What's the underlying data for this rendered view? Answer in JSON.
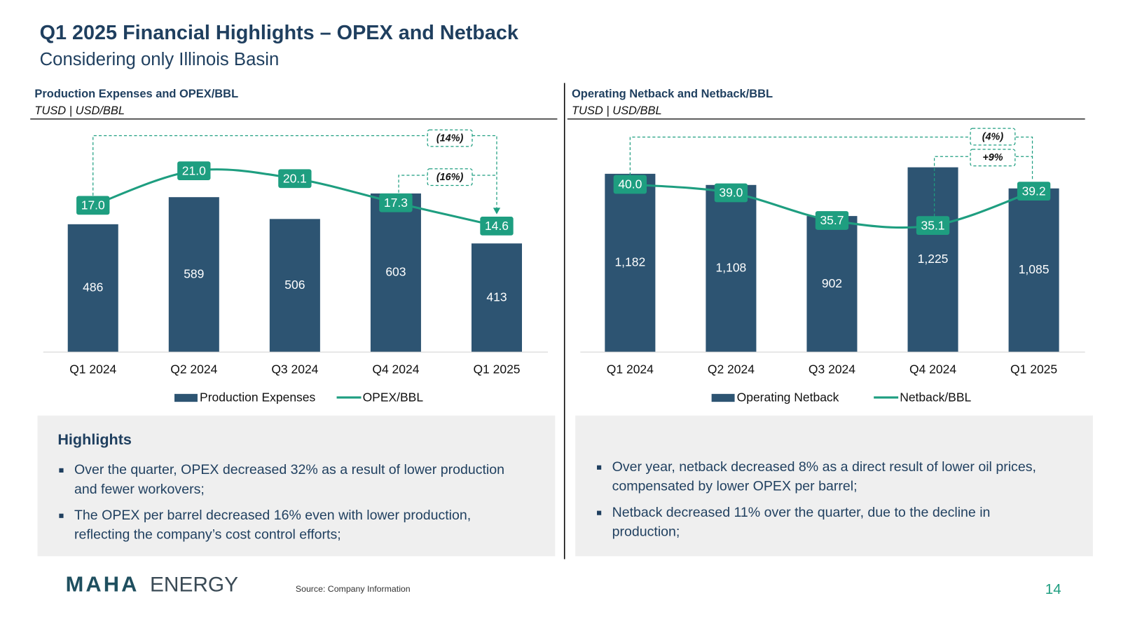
{
  "header": {
    "title": "Q1 2025 Financial Highlights – OPEX and Netback",
    "subtitle": "Considering only Illinois Basin"
  },
  "chart_data": [
    {
      "type": "combo",
      "title": "Production Expenses and OPEX/BBL",
      "subtitle": "TUSD | USD/BBL",
      "categories": [
        "Q1 2024",
        "Q2 2024",
        "Q3 2024",
        "Q4 2024",
        "Q1 2025"
      ],
      "series": [
        {
          "name": "Production Expenses",
          "type": "bar",
          "color": "#2d5472",
          "values": [
            486,
            589,
            506,
            603,
            413
          ]
        },
        {
          "name": "OPEX/BBL",
          "type": "line",
          "axis": "y2",
          "color": "#1e9e80",
          "values": [
            17.0,
            21.0,
            20.1,
            17.3,
            14.6
          ],
          "value_labels": [
            "17.0",
            "21.0",
            "20.1",
            "17.3",
            "14.6"
          ]
        }
      ],
      "ylim": [
        0,
        886
      ],
      "y2lim": [
        0,
        27
      ],
      "annotations": [
        "(14%)",
        "(16%)"
      ]
    },
    {
      "type": "combo",
      "title": "Operating Netback and Netback/BBL",
      "subtitle": "TUSD | USD/BBL",
      "categories": [
        "Q1 2024",
        "Q2 2024",
        "Q3 2024",
        "Q4 2024",
        "Q1 2025"
      ],
      "series": [
        {
          "name": "Operating Netback",
          "type": "bar",
          "color": "#2d5472",
          "values": [
            1182,
            1108,
            902,
            1225,
            1085
          ],
          "value_labels": [
            "1,182",
            "1,108",
            "902",
            "1,225",
            "1,085"
          ]
        },
        {
          "name": "Netback/BBL",
          "type": "line",
          "axis": "y2",
          "color": "#1e9e80",
          "values": [
            40.0,
            39.0,
            35.7,
            35.1,
            39.2
          ],
          "value_labels": [
            "40.0",
            "39.0",
            "35.7",
            "35.1",
            "39.2"
          ]
        }
      ],
      "ylim": [
        0,
        1545
      ],
      "y2lim": [
        20,
        47.8
      ],
      "annotations": [
        "(4%)",
        "+9%"
      ]
    }
  ],
  "highlights": {
    "title": "Highlights",
    "left": [
      "Over the quarter, OPEX decreased 32% as a result of lower production and fewer workovers;",
      "The OPEX per barrel decreased 16% even with lower production, reflecting the company’s cost control efforts;"
    ],
    "right": [
      "Over year, netback decreased 8% as a direct result of lower oil prices, compensated by lower OPEX per barrel;",
      "Netback decreased 11% over the quarter, due to the decline in production;"
    ]
  },
  "footer": {
    "logo": "MAHA",
    "logo_suffix": "ENERGY",
    "source": "Source: Company Information",
    "page": 14
  }
}
